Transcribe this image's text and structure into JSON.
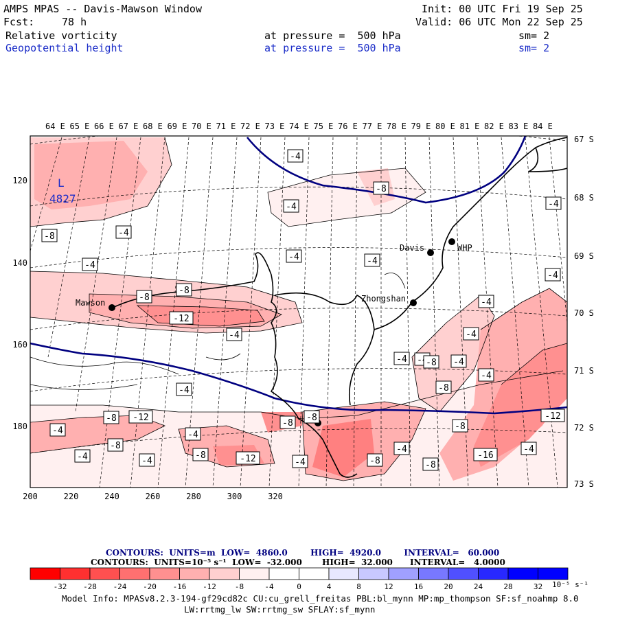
{
  "header": {
    "model_title": "AMPS MPAS -- Davis-Mawson Window",
    "init": "Init: 00 UTC Fri 19 Sep 25",
    "forecast_label": "Fcst:",
    "forecast_hours": "78 h",
    "valid": "Valid: 06 UTC Mon 22 Sep 25",
    "fields": [
      {
        "name": "Relative vorticity",
        "level": "at pressure =  500 hPa",
        "sm": "sm= 2"
      },
      {
        "name": "Geopotential height",
        "level": "at pressure =  500 hPa",
        "sm": "sm= 2"
      }
    ]
  },
  "map": {
    "longitude_labels": [
      "64 E",
      "65 E",
      "66 E",
      "67 E",
      "68 E",
      "69 E",
      "70 E",
      "71 E",
      "72 E",
      "73 E",
      "74 E",
      "75 E",
      "76 E",
      "77 E",
      "78 E",
      "79 E",
      "80 E",
      "81 E",
      "82 E",
      "83 E",
      "84 E"
    ],
    "latitude_labels": [
      "67 S",
      "68 S",
      "69 S",
      "70 S",
      "71 S",
      "72 S",
      "73 S"
    ],
    "y_ticks": [
      "120",
      "140",
      "160",
      "180"
    ],
    "x_ticks": [
      "200",
      "220",
      "240",
      "260",
      "280",
      "300",
      "320"
    ],
    "low_center": {
      "symbol": "L",
      "value": "4827"
    },
    "stations": [
      "Davis",
      "WHP",
      "Mawson",
      "Zhongshan"
    ],
    "contour_labels": [
      "-4",
      "-4",
      "-4",
      "-4",
      "-4",
      "-4",
      "-4",
      "-4",
      "-4",
      "-4",
      "-4",
      "-4",
      "-4",
      "-4",
      "-4",
      "-4",
      "-4",
      "-4",
      "-4",
      "-4",
      "-4",
      "-4",
      "-4",
      "-8",
      "-8",
      "-8",
      "-8",
      "-8",
      "-8",
      "-8",
      "-8",
      "-8",
      "-8",
      "-8",
      "-8",
      "-8",
      "-8",
      "-12",
      "-12",
      "-12",
      "-12",
      "-16"
    ],
    "colors": {
      "height_contour": "#000080",
      "coast": "#000000",
      "station": "#000000"
    }
  },
  "contours_info": {
    "line1": "CONTOURS:  UNITS=m  LOW=  4860.0        HIGH=  4920.0        INTERVAL=   60.000",
    "line2": "CONTOURS:  UNITS=10⁻⁵ s⁻¹  LOW=  -32.000       HIGH=  32.000      INTERVAL=   4.0000"
  },
  "colorbar": {
    "labels": [
      "-32",
      "-28",
      "-24",
      "-20",
      "-16",
      "-12",
      "-8",
      "-4",
      "0",
      "4",
      "8",
      "12",
      "16",
      "20",
      "24",
      "28",
      "32"
    ],
    "units": "10⁻⁵ s⁻¹",
    "colors": [
      "#ff0000",
      "#ff3030",
      "#ff5050",
      "#ff7070",
      "#ff9090",
      "#ffb0b0",
      "#ffd0d0",
      "#fff0f0",
      "#ffffff",
      "#ffffff",
      "#e8e8ff",
      "#c8c8ff",
      "#a0a0ff",
      "#7878ff",
      "#5050ff",
      "#2828ff",
      "#0000ff",
      "#0000ff"
    ]
  },
  "footer": {
    "line1": "Model Info: MPASv8.2.3-194-gf29cd82c CU:cu_grell_freitas PBL:bl_mynn MP:mp_thompson SF:sf_noahmp 8.0",
    "line2": "LW:rrtmg_lw SW:rrtmg_sw SFLAY:sf_mynn"
  }
}
